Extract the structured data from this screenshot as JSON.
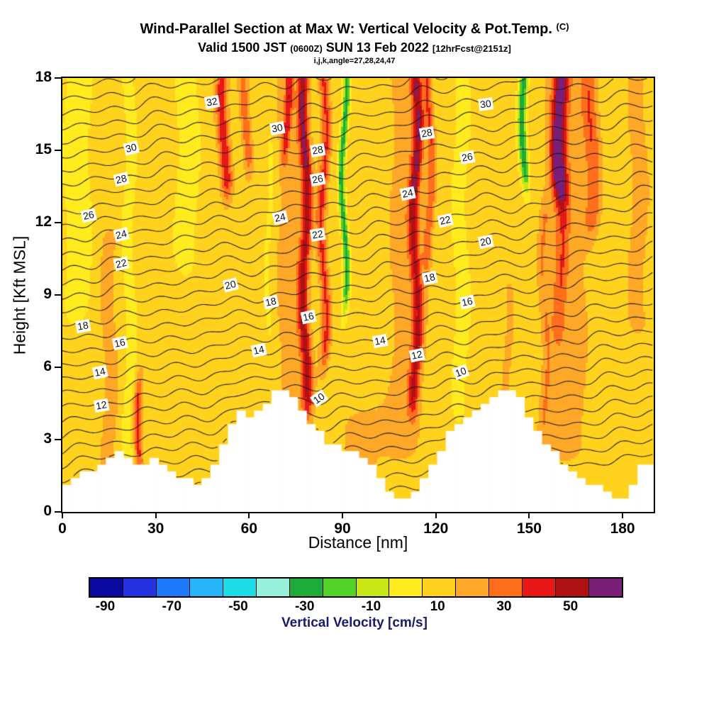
{
  "chart_data": {
    "type": "filled-contour-cross-section",
    "title": "Wind-Parallel Section at Max W: Vertical Velocity & Pot.Temp.",
    "title_units": "(C)",
    "subtitle": {
      "part1": "Valid 1500 JST",
      "small1": "(0600Z)",
      "part2": "SUN 13 Feb 2022",
      "small2": "[12hrFcst@2151z]"
    },
    "info_line": "i,j,k,angle=27,28,24,47",
    "xlabel": "Distance [nm]",
    "ylabel": "Height [Kft MSL]",
    "xlim": [
      0,
      190
    ],
    "ylim": [
      0,
      18
    ],
    "x_ticks": [
      0,
      30,
      60,
      90,
      120,
      150,
      180
    ],
    "y_ticks": [
      0,
      3,
      6,
      9,
      12,
      15,
      18
    ],
    "line_contours": {
      "variable": "Potential Temperature",
      "units": "C",
      "interval": 1,
      "level_min": 3,
      "level_max": 35,
      "fit": {
        "a": 4.66,
        "b": 1.72,
        "c": -0.03
      },
      "labels": [
        [
          32,
          48,
          17.0,
          -10
        ],
        [
          30,
          22,
          15.1,
          -14
        ],
        [
          30,
          69,
          15.9,
          -10
        ],
        [
          30,
          136,
          16.9,
          -8
        ],
        [
          28,
          19,
          13.8,
          -14
        ],
        [
          28,
          82,
          15.0,
          -10
        ],
        [
          28,
          117,
          15.7,
          -10
        ],
        [
          26,
          8.5,
          12.3,
          -12
        ],
        [
          26,
          82,
          13.8,
          -10
        ],
        [
          26,
          130,
          14.7,
          -10
        ],
        [
          24,
          19,
          11.5,
          -14
        ],
        [
          24,
          70,
          12.2,
          -12
        ],
        [
          24,
          111,
          13.2,
          -12
        ],
        [
          22,
          19,
          10.3,
          -14
        ],
        [
          22,
          82,
          11.5,
          -10
        ],
        [
          22,
          123,
          12.1,
          -12
        ],
        [
          20,
          54,
          9.4,
          -14
        ],
        [
          20,
          136,
          11.2,
          -12
        ],
        [
          18,
          6.5,
          7.7,
          -10
        ],
        [
          18,
          67,
          8.7,
          -12
        ],
        [
          18,
          118,
          9.7,
          -12
        ],
        [
          16,
          18.5,
          7.0,
          -12
        ],
        [
          16,
          79,
          8.1,
          -12
        ],
        [
          16,
          130,
          8.7,
          -12
        ],
        [
          14,
          12,
          5.8,
          -12
        ],
        [
          14,
          63,
          6.7,
          -12
        ],
        [
          14,
          102,
          7.1,
          -10
        ],
        [
          12,
          12.5,
          4.4,
          -10
        ],
        [
          12,
          114,
          6.5,
          -12
        ],
        [
          10,
          82.5,
          4.7,
          -35
        ],
        [
          10,
          128,
          5.8,
          -20
        ]
      ]
    },
    "fill_contours": {
      "variable": "Vertical Velocity",
      "units": "cm/s",
      "base": 8,
      "plumes": [
        [
          15,
          3.5,
          0,
          11,
          10
        ],
        [
          25,
          1.3,
          2.6,
          4.6,
          30
        ],
        [
          74,
          6.5,
          3.5,
          18,
          11
        ],
        [
          110,
          7,
          3,
          18,
          10
        ],
        [
          162,
          8,
          3,
          18,
          12
        ],
        [
          96,
          9,
          0,
          3.5,
          9
        ],
        [
          185,
          5,
          8,
          18,
          9
        ],
        [
          78,
          1.7,
          5,
          18,
          34
        ],
        [
          78,
          1.1,
          15,
          18,
          7
        ],
        [
          84,
          1.6,
          7,
          18,
          28
        ],
        [
          72,
          1.2,
          15.5,
          18,
          26
        ],
        [
          52,
          2.0,
          14,
          18,
          34
        ],
        [
          59,
          1.6,
          15,
          18,
          24
        ],
        [
          113.5,
          1.8,
          5,
          18,
          32
        ],
        [
          113.5,
          1.4,
          13,
          18,
          8
        ],
        [
          118,
          1.4,
          11,
          18,
          24
        ],
        [
          160,
          2.4,
          14,
          18,
          46
        ],
        [
          160,
          2.0,
          8,
          14,
          16
        ],
        [
          155,
          1.5,
          4,
          12,
          12
        ],
        [
          170,
          2.5,
          12.5,
          18,
          22
        ],
        [
          143,
          3,
          4.5,
          9,
          8
        ],
        [
          90.5,
          1.0,
          9.5,
          18,
          -40
        ],
        [
          148.5,
          1.3,
          14.5,
          18,
          -42
        ],
        [
          21.5,
          1.6,
          1.5,
          18,
          -10
        ],
        [
          5,
          4,
          9,
          18,
          -9
        ],
        [
          40,
          3.5,
          11,
          18,
          -8
        ],
        [
          128,
          2.2,
          5,
          18,
          -9
        ],
        [
          66.5,
          1.3,
          8,
          15,
          -8
        ]
      ]
    },
    "colorbar": {
      "label": "Vertical Velocity [cm/s]",
      "tick_labels": [
        "-90",
        "-70",
        "-50",
        "-30",
        "-10",
        "10",
        "30",
        "50"
      ],
      "segment_values": [
        -90,
        -80,
        -70,
        -60,
        -50,
        -40,
        -30,
        -20,
        -10,
        0,
        10,
        20,
        30,
        40,
        50,
        60
      ],
      "colors": [
        "#0a0aa0",
        "#2432e0",
        "#1e78fa",
        "#28b4fa",
        "#1edce6",
        "#96f0dc",
        "#1faa3c",
        "#55d228",
        "#c8e616",
        "#ffeb1e",
        "#ffd21e",
        "#ffa828",
        "#ff6e1a",
        "#e81818",
        "#b01212",
        "#7a1e78"
      ]
    },
    "terrain_profile": [
      [
        0,
        0.9
      ],
      [
        3,
        1.1
      ],
      [
        6,
        1.4
      ],
      [
        9,
        1.6
      ],
      [
        12,
        1.9
      ],
      [
        15,
        2.1
      ],
      [
        18,
        2.3
      ],
      [
        20,
        2.2
      ],
      [
        22,
        2.0
      ],
      [
        24,
        1.85
      ],
      [
        26,
        1.9
      ],
      [
        28,
        2.05
      ],
      [
        30,
        2.1
      ],
      [
        32,
        1.95
      ],
      [
        34,
        1.75
      ],
      [
        36,
        1.5
      ],
      [
        38,
        1.3
      ],
      [
        40,
        1.15
      ],
      [
        42,
        1.05
      ],
      [
        44,
        1.1
      ],
      [
        46,
        1.3
      ],
      [
        48,
        1.7
      ],
      [
        50,
        2.2
      ],
      [
        52,
        2.8
      ],
      [
        54,
        3.4
      ],
      [
        56,
        3.9
      ],
      [
        57.5,
        4.15
      ],
      [
        59,
        4.0
      ],
      [
        61,
        3.85
      ],
      [
        63,
        4.0
      ],
      [
        65,
        4.3
      ],
      [
        67,
        4.6
      ],
      [
        69,
        4.85
      ],
      [
        71,
        5.0
      ],
      [
        73,
        4.9
      ],
      [
        75,
        4.6
      ],
      [
        77,
        4.2
      ],
      [
        79,
        3.8
      ],
      [
        81,
        3.4
      ],
      [
        83,
        3.05
      ],
      [
        85,
        2.8
      ],
      [
        87,
        2.6
      ],
      [
        89,
        2.5
      ],
      [
        91,
        2.45
      ],
      [
        93,
        2.4
      ],
      [
        95,
        2.3
      ],
      [
        97,
        2.1
      ],
      [
        99,
        1.8
      ],
      [
        101,
        1.4
      ],
      [
        103,
        1.0
      ],
      [
        105,
        0.7
      ],
      [
        107,
        0.45
      ],
      [
        109,
        0.35
      ],
      [
        111,
        0.4
      ],
      [
        113,
        0.6
      ],
      [
        115,
        0.9
      ],
      [
        117,
        1.3
      ],
      [
        119,
        1.8
      ],
      [
        121,
        2.3
      ],
      [
        123,
        2.8
      ],
      [
        125,
        3.2
      ],
      [
        127,
        3.5
      ],
      [
        129,
        3.7
      ],
      [
        131,
        3.9
      ],
      [
        133,
        4.1
      ],
      [
        135,
        4.3
      ],
      [
        137,
        4.55
      ],
      [
        139,
        4.8
      ],
      [
        141,
        4.95
      ],
      [
        143,
        5.0
      ],
      [
        145,
        4.85
      ],
      [
        147,
        4.5
      ],
      [
        149,
        4.0
      ],
      [
        151,
        3.5
      ],
      [
        153,
        3.1
      ],
      [
        155,
        2.8
      ],
      [
        157,
        2.5
      ],
      [
        159,
        2.2
      ],
      [
        161,
        1.9
      ],
      [
        163,
        1.7
      ],
      [
        165,
        1.5
      ],
      [
        167,
        1.3
      ],
      [
        169,
        1.1
      ],
      [
        171,
        0.95
      ],
      [
        173,
        0.8
      ],
      [
        175,
        0.6
      ],
      [
        177,
        0.45
      ],
      [
        179,
        0.4
      ],
      [
        181,
        0.6
      ],
      [
        183,
        1.0
      ],
      [
        185,
        1.5
      ],
      [
        187,
        1.9
      ],
      [
        188,
        2.0
      ],
      [
        189,
        1.7
      ],
      [
        190,
        1.3
      ]
    ]
  }
}
